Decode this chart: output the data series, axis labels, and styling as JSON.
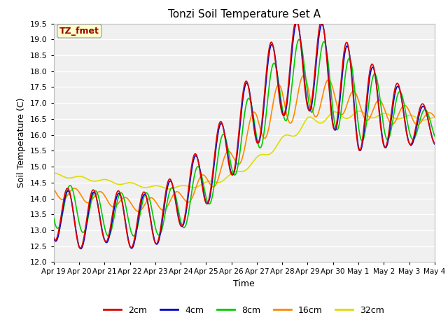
{
  "title": "Tonzi Soil Temperature Set A",
  "xlabel": "Time",
  "ylabel": "Soil Temperature (C)",
  "ylim": [
    12.0,
    19.5
  ],
  "yticks": [
    12.0,
    12.5,
    13.0,
    13.5,
    14.0,
    14.5,
    15.0,
    15.5,
    16.0,
    16.5,
    17.0,
    17.5,
    18.0,
    18.5,
    19.0,
    19.5
  ],
  "xtick_labels": [
    "Apr 19",
    "Apr 20",
    "Apr 21",
    "Apr 22",
    "Apr 23",
    "Apr 24",
    "Apr 25",
    "Apr 26",
    "Apr 27",
    "Apr 28",
    "Apr 29",
    "Apr 30",
    "May 1",
    "May 2",
    "May 3",
    "May 4"
  ],
  "legend_labels": [
    "2cm",
    "4cm",
    "8cm",
    "16cm",
    "32cm"
  ],
  "legend_colors": [
    "#dd0000",
    "#0000cc",
    "#00cc00",
    "#ff8800",
    "#dddd00"
  ],
  "annotation_text": "TZ_fmet",
  "annotation_color": "#990000",
  "annotation_bg": "#ffffcc",
  "annotation_border": "#aaaaaa",
  "bg_color": "#ffffff",
  "plot_bg_color": "#f0f0f0",
  "num_points": 720
}
